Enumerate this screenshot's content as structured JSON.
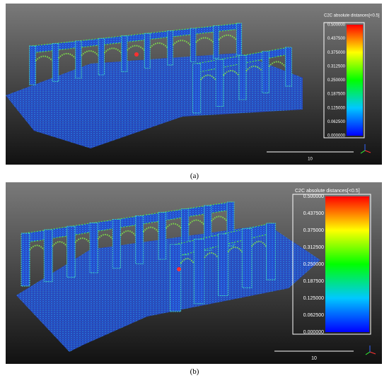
{
  "panels": [
    {
      "colorbar_title": "C2C absolute distances[<0.5]",
      "colorbar_ticks": [
        "0.500000",
        "0.437500",
        "0.375000",
        "0.312500",
        "0.250000",
        "0.187500",
        "0.125000",
        "0.062500",
        "0.000000"
      ],
      "scale_label": "10",
      "caption": "(a)"
    },
    {
      "colorbar_title": "C2C absolute distances[<0.5]",
      "colorbar_ticks": [
        "0.500000",
        "0.437500",
        "0.375000",
        "0.312500",
        "0.250000",
        "0.187500",
        "0.125000",
        "0.062500",
        "0.000000"
      ],
      "scale_label": "10",
      "caption": "(b)"
    }
  ]
}
